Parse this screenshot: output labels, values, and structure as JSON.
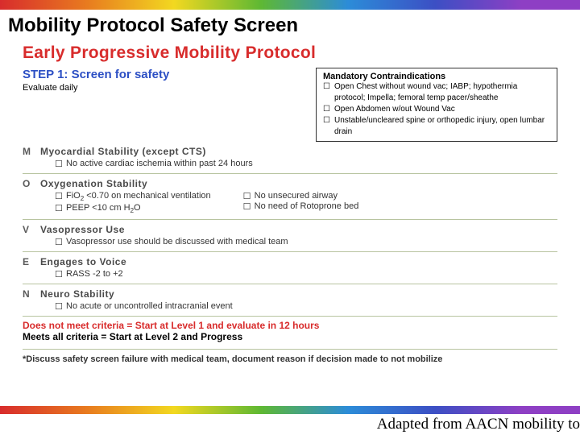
{
  "slide": {
    "title": "Mobility Protocol Safety Screen",
    "attribution": "Adapted from AACN mobility to"
  },
  "protocol": {
    "title": "Early Progressive Mobility Protocol",
    "step_title": "STEP 1: Screen for safety",
    "evaluate": "Evaluate daily",
    "contraindications": {
      "title": "Mandatory Contraindications",
      "items": [
        "Open Chest without wound vac; IABP; hypothermia protocol; Impella; femoral temp pacer/sheathe",
        "Open Abdomen w/out Wound Vac",
        "Unstable/uncleared spine or orthopedic injury, open lumbar drain"
      ]
    },
    "moven": [
      {
        "letter": "M",
        "head": "Myocardial Stability (except CTS)",
        "cols": [
          [
            "No active cardiac ischemia within past 24 hours"
          ]
        ]
      },
      {
        "letter": "O",
        "head": "Oxygenation Stability",
        "cols": [
          [
            "FiO₂ <0.70 on mechanical ventilation",
            "PEEP <10 cm H₂O"
          ],
          [
            "No unsecured airway",
            "No need of Rotoprone bed"
          ]
        ]
      },
      {
        "letter": "V",
        "head": "Vasopressor Use",
        "cols": [
          [
            "Vasopressor use should be discussed with medical team"
          ]
        ]
      },
      {
        "letter": "E",
        "head": "Engages to Voice",
        "cols": [
          [
            "RASS -2 to +2"
          ]
        ]
      },
      {
        "letter": "N",
        "head": "Neuro Stability",
        "cols": [
          [
            "No acute or uncontrolled intracranial event"
          ]
        ]
      }
    ],
    "criteria": {
      "not_meet": "Does not meet criteria = Start at Level 1 and evaluate in 12 hours",
      "meets": "Meets all criteria = Start at Level 2 and Progress"
    },
    "footnote": "*Discuss safety screen failure with medical team, document reason if decision made to not mobilize"
  }
}
